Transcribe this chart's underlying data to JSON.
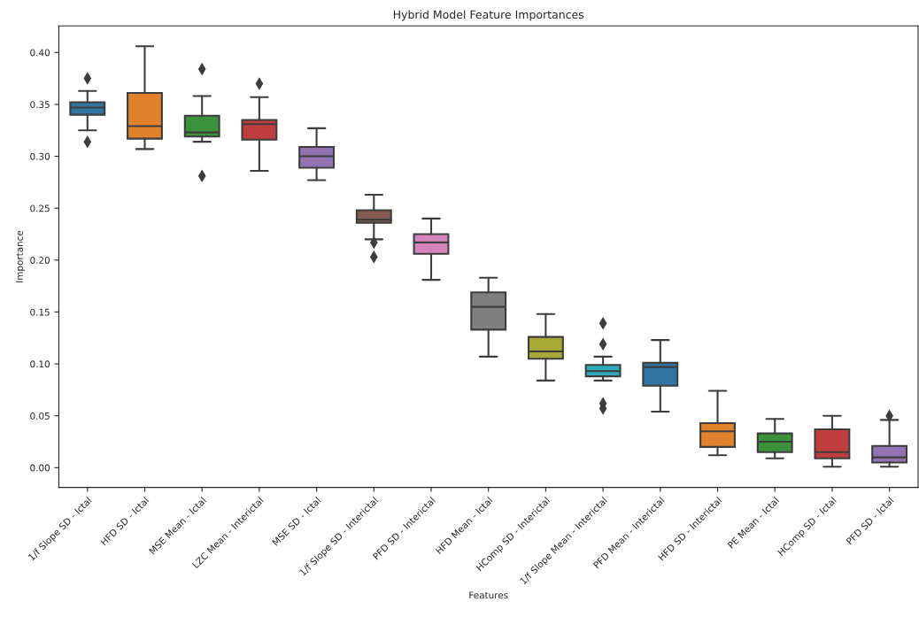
{
  "chart_data": {
    "type": "box",
    "title": "Hybrid Model Feature Importances",
    "xlabel": "Features",
    "ylabel": "Importance",
    "categories": [
      "1/f Slope SD - Ictal",
      "HFD SD - Ictal",
      "MSE Mean - Ictal",
      "LZC Mean - Interictal",
      "MSE SD - Ictal",
      "1/f Slope SD - Interictal",
      "PFD SD - Interictal",
      "HFD Mean - Ictal",
      "HComp SD - Interictal",
      "1/f Slope Mean - Interictal",
      "PFD Mean - Interictal",
      "HFD SD - Interictal",
      "PE Mean - Ictal",
      "HComp SD - Ictal",
      "PFD SD - Ictal"
    ],
    "colors": [
      "#3274a1",
      "#e1812c",
      "#3a923a",
      "#c03d3e",
      "#9372b2",
      "#845b53",
      "#d684bd",
      "#7f7f7f",
      "#a9aa35",
      "#2eabb8",
      "#3274a1",
      "#e1812c",
      "#3a923a",
      "#c03d3e",
      "#9372b2"
    ],
    "boxes": [
      {
        "low": 0.325,
        "q1": 0.34,
        "median": 0.347,
        "q3": 0.352,
        "high": 0.363,
        "outliers": [
          0.375,
          0.314
        ]
      },
      {
        "low": 0.307,
        "q1": 0.317,
        "median": 0.329,
        "q3": 0.361,
        "high": 0.406
      },
      {
        "low": 0.314,
        "q1": 0.319,
        "median": 0.323,
        "q3": 0.339,
        "high": 0.358,
        "outliers": [
          0.384,
          0.281
        ]
      },
      {
        "low": 0.286,
        "q1": 0.316,
        "median": 0.331,
        "q3": 0.335,
        "high": 0.357,
        "outliers": [
          0.37
        ]
      },
      {
        "low": 0.277,
        "q1": 0.289,
        "median": 0.3,
        "q3": 0.309,
        "high": 0.327
      },
      {
        "low": 0.22,
        "q1": 0.236,
        "median": 0.239,
        "q3": 0.248,
        "high": 0.263,
        "outliers": [
          0.217,
          0.203
        ]
      },
      {
        "low": 0.181,
        "q1": 0.206,
        "median": 0.217,
        "q3": 0.225,
        "high": 0.24
      },
      {
        "low": 0.107,
        "q1": 0.133,
        "median": 0.155,
        "q3": 0.169,
        "high": 0.183
      },
      {
        "low": 0.084,
        "q1": 0.105,
        "median": 0.112,
        "q3": 0.126,
        "high": 0.148
      },
      {
        "low": 0.084,
        "q1": 0.088,
        "median": 0.093,
        "q3": 0.099,
        "high": 0.107,
        "outliers": [
          0.139,
          0.119,
          0.062,
          0.057
        ]
      },
      {
        "low": 0.054,
        "q1": 0.079,
        "median": 0.097,
        "q3": 0.101,
        "high": 0.123
      },
      {
        "low": 0.012,
        "q1": 0.02,
        "median": 0.035,
        "q3": 0.043,
        "high": 0.074
      },
      {
        "low": 0.009,
        "q1": 0.015,
        "median": 0.025,
        "q3": 0.033,
        "high": 0.047
      },
      {
        "low": 0.001,
        "q1": 0.009,
        "median": 0.015,
        "q3": 0.037,
        "high": 0.05
      },
      {
        "low": 0.001,
        "q1": 0.005,
        "median": 0.01,
        "q3": 0.021,
        "high": 0.046,
        "outliers": [
          0.05
        ]
      }
    ],
    "ylim": [
      -0.019,
      0.4256
    ],
    "yticks": [
      {
        "value": 0,
        "label": "0.00"
      },
      {
        "value": 0.05,
        "label": "0.05"
      },
      {
        "value": 0.1,
        "label": "0.10"
      },
      {
        "value": 0.15,
        "label": "0.15"
      },
      {
        "value": 0.2,
        "label": "0.20"
      },
      {
        "value": 0.25,
        "label": "0.25"
      },
      {
        "value": 0.3,
        "label": "0.30"
      },
      {
        "value": 0.35,
        "label": "0.35"
      },
      {
        "value": 0.4,
        "label": "0.40"
      }
    ],
    "marker": "diamond",
    "grid": false
  }
}
